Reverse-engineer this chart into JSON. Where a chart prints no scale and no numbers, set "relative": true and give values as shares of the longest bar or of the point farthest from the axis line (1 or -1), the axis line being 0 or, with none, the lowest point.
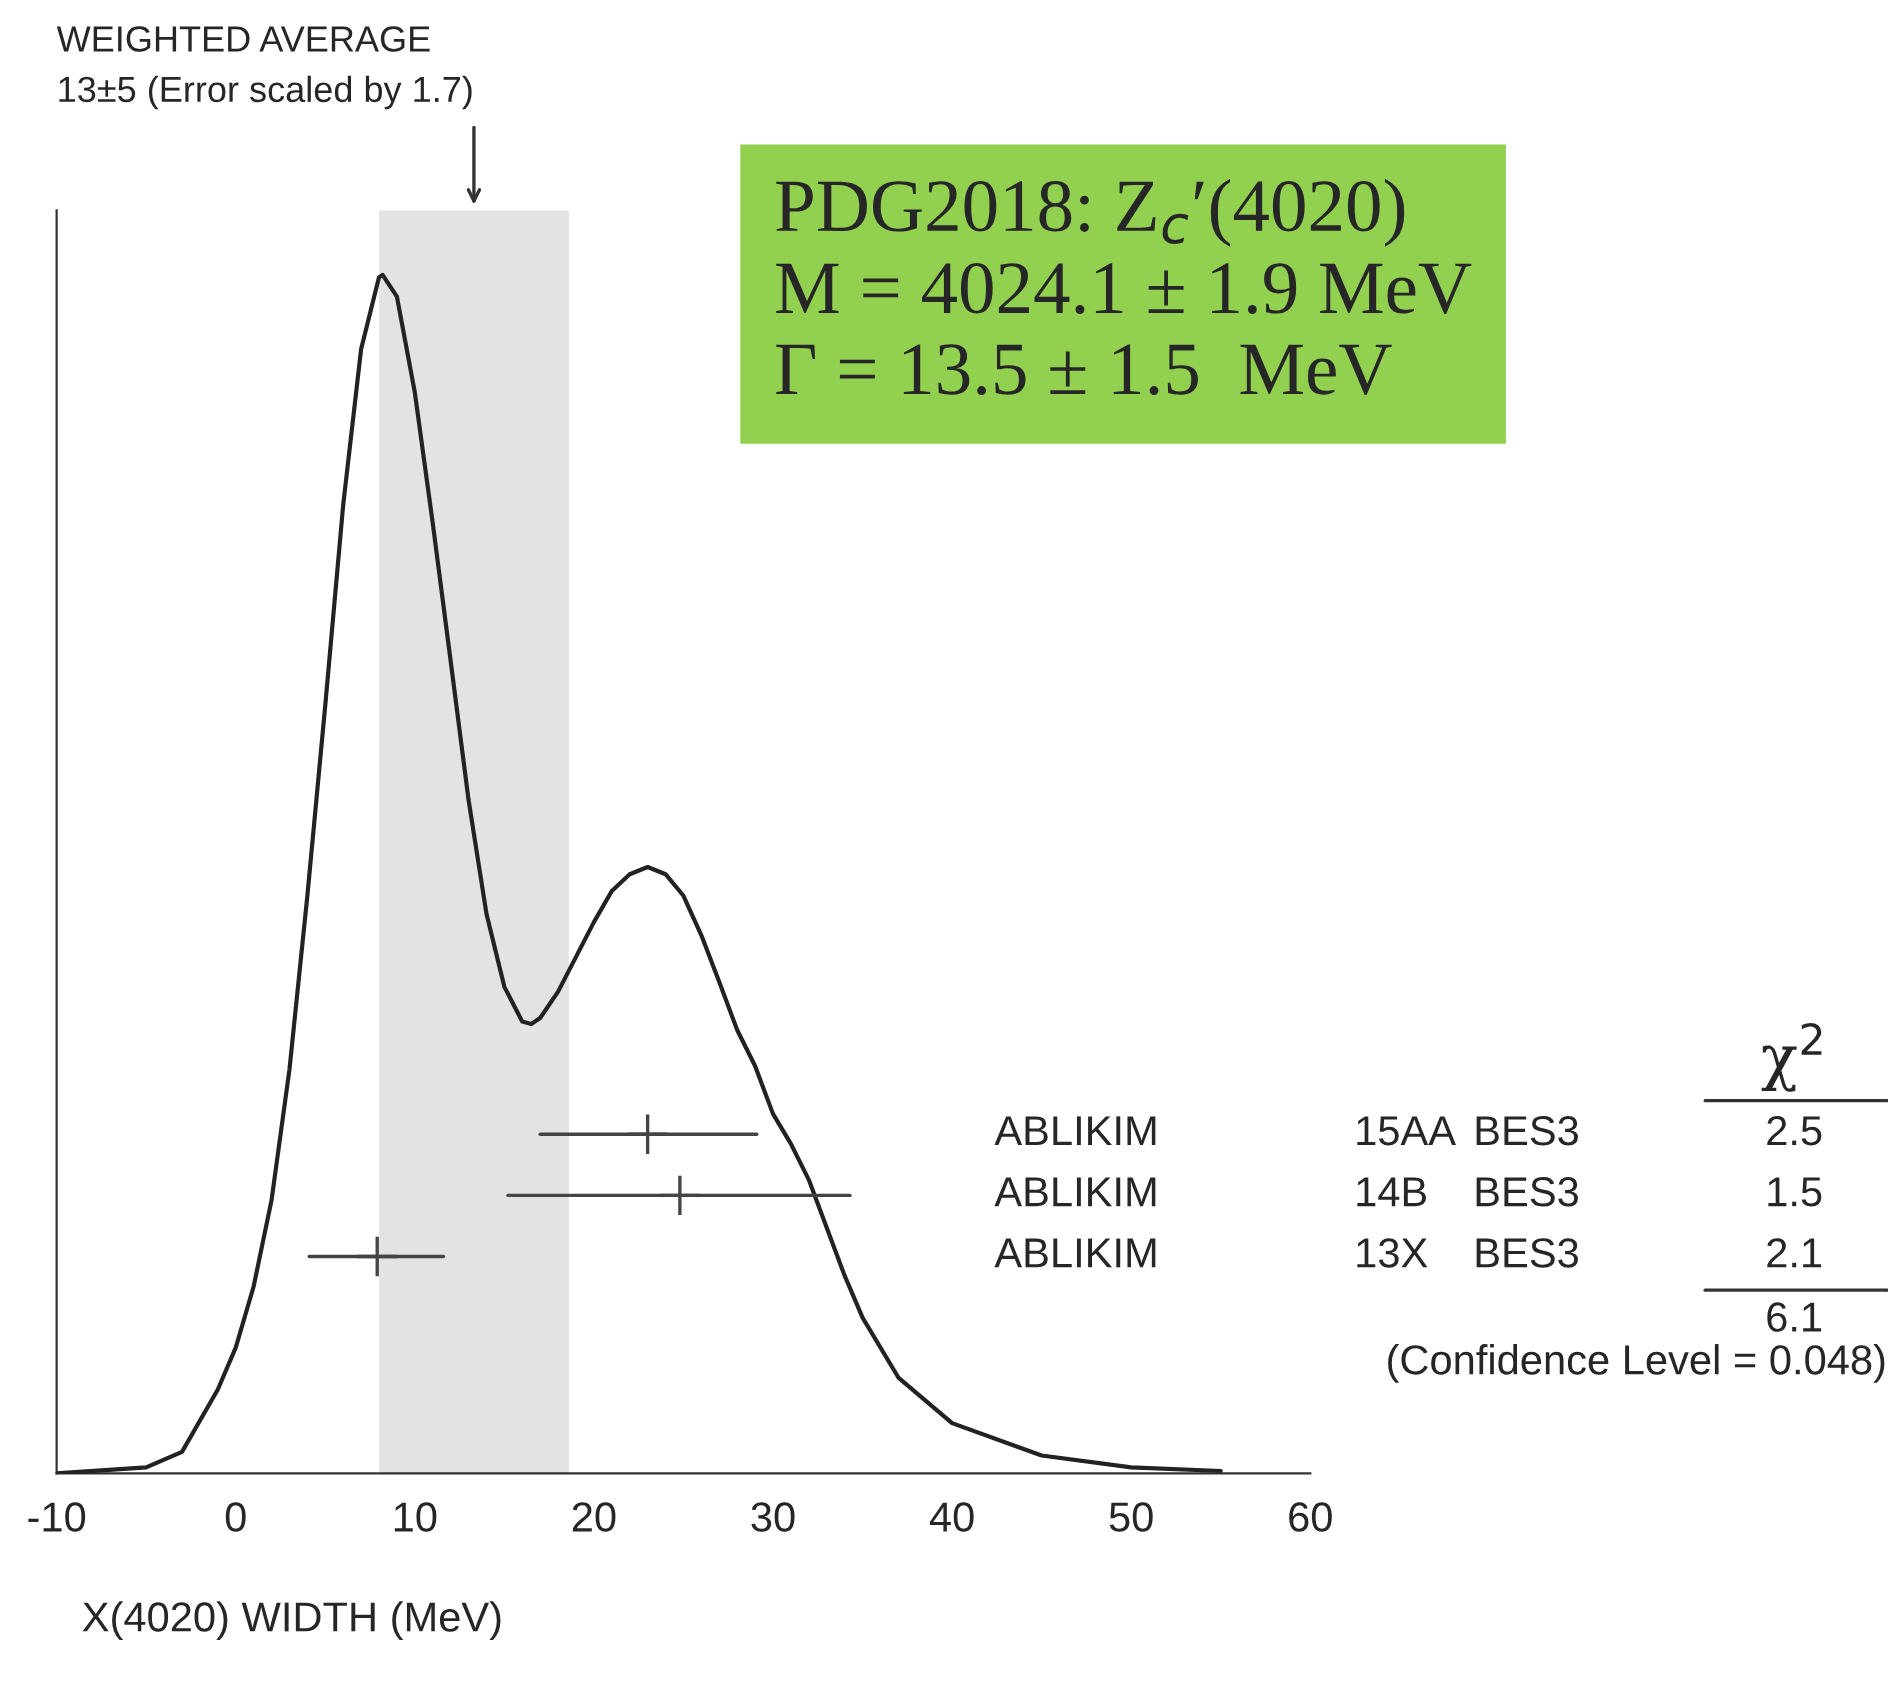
{
  "chart_data": {
    "type": "line",
    "title": "WEIGHTED AVERAGE",
    "subtitle": "13±5 (Error scaled by 1.7)",
    "xlabel": "X(4020) WIDTH (MeV)",
    "relative": true,
    "x": [
      -10,
      -5,
      -3,
      -1,
      0,
      1,
      2,
      3,
      4,
      5,
      6,
      7,
      8,
      8.2,
      9,
      10,
      11,
      12,
      13,
      14,
      15,
      16,
      16.5,
      17,
      18,
      19,
      20,
      21,
      22,
      23,
      24,
      25,
      26,
      27,
      28,
      29,
      30,
      31,
      32,
      33,
      34,
      35,
      37,
      40,
      45,
      50,
      55
    ],
    "series": [
      {
        "color": "#222222",
        "values": [
          0,
          0.005,
          0.018,
          0.07,
          0.105,
          0.156,
          0.228,
          0.337,
          0.482,
          0.641,
          0.808,
          0.938,
          0.998,
          1.0,
          0.982,
          0.902,
          0.793,
          0.678,
          0.562,
          0.467,
          0.406,
          0.377,
          0.375,
          0.38,
          0.402,
          0.431,
          0.46,
          0.486,
          0.5,
          0.506,
          0.5,
          0.482,
          0.449,
          0.41,
          0.37,
          0.34,
          0.3,
          0.275,
          0.245,
          0.205,
          0.165,
          0.13,
          0.08,
          0.042,
          0.015,
          0.005,
          0.002
        ]
      },
      {
        "type": "scatter",
        "name": "ABLIKIM 15AA BES3",
        "color": "#444444",
        "marker": "cross",
        "x": [
          23
        ],
        "values": [
          0.283
        ],
        "xerrors": [
          [
            17.0,
            29.1
          ]
        ]
      },
      {
        "type": "scatter",
        "name": "ABLIKIM 14B BES3",
        "color": "#444444",
        "marker": "cross",
        "x": [
          24.8
        ],
        "values": [
          0.232
        ],
        "xerrors": [
          [
            15.2,
            34.3
          ]
        ]
      },
      {
        "type": "scatter",
        "name": "ABLIKIM 13X BES3",
        "color": "#444444",
        "marker": "cross",
        "x": [
          7.9
        ],
        "values": [
          0.181
        ],
        "xerrors": [
          [
            4.1,
            11.6
          ]
        ]
      }
    ],
    "bands": [
      {
        "axis": "x",
        "from": 8.0,
        "to": 18.6,
        "color": "#e3e3e3"
      }
    ],
    "xlim": [
      -10,
      60
    ],
    "xticks": [
      -10,
      0,
      10,
      20,
      30,
      40,
      50,
      60
    ],
    "tick_labels": "x",
    "grid": false,
    "marker": "none",
    "annotations": [
      "PDG2018: Z$_{c}$′(4020)\nM = 4024.1 ± 1.9 MeV\nΓ = 13.5 ± 1.5  MeV",
      "χ$^{2}$",
      "2.5",
      "1.5",
      "2.1",
      "6.1",
      "(Confidence Level = 0.048)"
    ]
  }
}
